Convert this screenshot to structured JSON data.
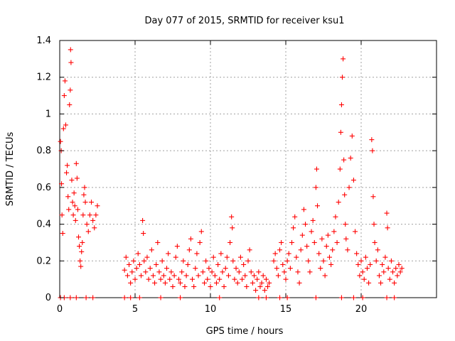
{
  "chart_data": {
    "type": "scatter",
    "title": "Day 077 of 2015, SRMTID for receiver ksu1",
    "xlabel": "GPS time / hours",
    "ylabel": "SRMTID / TECUs",
    "xlim": [
      0,
      25
    ],
    "ylim": [
      0,
      1.4
    ],
    "xticks": [
      0,
      5,
      10,
      15,
      20
    ],
    "xtick_labels": [
      "0",
      "5",
      "10",
      "15",
      "20"
    ],
    "yticks": [
      0,
      0.2,
      0.4,
      0.6,
      0.8,
      1.0,
      1.2,
      1.4
    ],
    "ytick_labels": [
      "0",
      "0.2",
      "0.4",
      "0.6",
      "0.8",
      "1",
      "1.2",
      "1.4"
    ],
    "grid": true,
    "marker": "+",
    "color": "#ff0000",
    "series": [
      {
        "name": "SRMTID",
        "points": [
          [
            0.05,
            0.85
          ],
          [
            0.1,
            0.8
          ],
          [
            0.12,
            0.62
          ],
          [
            0.15,
            0.45
          ],
          [
            0.2,
            0.35
          ],
          [
            0.25,
            0.92
          ],
          [
            0.3,
            1.1
          ],
          [
            0.35,
            1.18
          ],
          [
            0.4,
            0.94
          ],
          [
            0.45,
            0.68
          ],
          [
            0.5,
            0.72
          ],
          [
            0.55,
            0.55
          ],
          [
            0.6,
            0.48
          ],
          [
            0.65,
            1.05
          ],
          [
            0.7,
            1.13
          ],
          [
            0.72,
            1.35
          ],
          [
            0.75,
            1.28
          ],
          [
            0.8,
            0.64
          ],
          [
            0.85,
            0.52
          ],
          [
            0.9,
            0.45
          ],
          [
            0.95,
            0.57
          ],
          [
            1.0,
            0.5
          ],
          [
            1.05,
            0.42
          ],
          [
            1.1,
            0.73
          ],
          [
            1.15,
            0.65
          ],
          [
            1.2,
            0.48
          ],
          [
            1.25,
            0.33
          ],
          [
            1.3,
            0.28
          ],
          [
            1.35,
            0.2
          ],
          [
            1.4,
            0.17
          ],
          [
            1.45,
            0.25
          ],
          [
            1.5,
            0.3
          ],
          [
            1.55,
            0.45
          ],
          [
            1.6,
            0.56
          ],
          [
            1.65,
            0.6
          ],
          [
            1.7,
            0.52
          ],
          [
            1.8,
            0.4
          ],
          [
            1.9,
            0.36
          ],
          [
            2.0,
            0.45
          ],
          [
            2.1,
            0.52
          ],
          [
            2.2,
            0.42
          ],
          [
            2.3,
            0.38
          ],
          [
            2.4,
            0.45
          ],
          [
            2.5,
            0.5
          ],
          [
            4.3,
            0.15
          ],
          [
            4.4,
            0.22
          ],
          [
            4.5,
            0.12
          ],
          [
            4.6,
            0.18
          ],
          [
            4.7,
            0.08
          ],
          [
            4.8,
            0.14
          ],
          [
            4.9,
            0.2
          ],
          [
            5.0,
            0.1
          ],
          [
            5.1,
            0.16
          ],
          [
            5.2,
            0.24
          ],
          [
            5.3,
            0.18
          ],
          [
            5.4,
            0.12
          ],
          [
            5.5,
            0.42
          ],
          [
            5.55,
            0.35
          ],
          [
            5.6,
            0.2
          ],
          [
            5.7,
            0.14
          ],
          [
            5.8,
            0.22
          ],
          [
            5.9,
            0.1
          ],
          [
            6.0,
            0.16
          ],
          [
            6.1,
            0.26
          ],
          [
            6.2,
            0.12
          ],
          [
            6.3,
            0.08
          ],
          [
            6.4,
            0.18
          ],
          [
            6.5,
            0.3
          ],
          [
            6.6,
            0.14
          ],
          [
            6.7,
            0.1
          ],
          [
            6.8,
            0.2
          ],
          [
            6.9,
            0.12
          ],
          [
            7.0,
            0.08
          ],
          [
            7.1,
            0.16
          ],
          [
            7.2,
            0.24
          ],
          [
            7.3,
            0.1
          ],
          [
            7.4,
            0.14
          ],
          [
            7.5,
            0.06
          ],
          [
            7.6,
            0.12
          ],
          [
            7.7,
            0.22
          ],
          [
            7.8,
            0.28
          ],
          [
            7.9,
            0.1
          ],
          [
            8.0,
            0.08
          ],
          [
            8.1,
            0.14
          ],
          [
            8.2,
            0.2
          ],
          [
            8.3,
            0.06
          ],
          [
            8.4,
            0.12
          ],
          [
            8.5,
            0.18
          ],
          [
            8.6,
            0.26
          ],
          [
            8.7,
            0.32
          ],
          [
            8.8,
            0.1
          ],
          [
            8.9,
            0.06
          ],
          [
            9.0,
            0.16
          ],
          [
            9.1,
            0.24
          ],
          [
            9.2,
            0.12
          ],
          [
            9.3,
            0.3
          ],
          [
            9.4,
            0.36
          ],
          [
            9.5,
            0.14
          ],
          [
            9.6,
            0.08
          ],
          [
            9.7,
            0.2
          ],
          [
            9.8,
            0.1
          ],
          [
            9.9,
            0.16
          ],
          [
            10.0,
            0.06
          ],
          [
            10.1,
            0.14
          ],
          [
            10.2,
            0.22
          ],
          [
            10.3,
            0.12
          ],
          [
            10.4,
            0.08
          ],
          [
            10.5,
            0.18
          ],
          [
            10.6,
            0.1
          ],
          [
            10.7,
            0.24
          ],
          [
            10.8,
            0.14
          ],
          [
            10.9,
            0.06
          ],
          [
            11.0,
            0.16
          ],
          [
            11.1,
            0.22
          ],
          [
            11.2,
            0.12
          ],
          [
            11.3,
            0.3
          ],
          [
            11.4,
            0.44
          ],
          [
            11.45,
            0.38
          ],
          [
            11.5,
            0.2
          ],
          [
            11.6,
            0.1
          ],
          [
            11.7,
            0.16
          ],
          [
            11.8,
            0.08
          ],
          [
            11.9,
            0.14
          ],
          [
            12.0,
            0.22
          ],
          [
            12.1,
            0.1
          ],
          [
            12.2,
            0.18
          ],
          [
            12.3,
            0.12
          ],
          [
            12.4,
            0.06
          ],
          [
            12.5,
            0.2
          ],
          [
            12.6,
            0.26
          ],
          [
            12.7,
            0.14
          ],
          [
            12.8,
            0.08
          ],
          [
            12.9,
            0.12
          ],
          [
            13.0,
            0.04
          ],
          [
            13.1,
            0.1
          ],
          [
            13.2,
            0.14
          ],
          [
            13.3,
            0.06
          ],
          [
            13.4,
            0.08
          ],
          [
            13.5,
            0.12
          ],
          [
            13.6,
            0.04
          ],
          [
            13.7,
            0.1
          ],
          [
            13.8,
            0.06
          ],
          [
            13.9,
            0.08
          ],
          [
            14.2,
            0.2
          ],
          [
            14.3,
            0.24
          ],
          [
            14.4,
            0.16
          ],
          [
            14.5,
            0.12
          ],
          [
            14.6,
            0.26
          ],
          [
            14.7,
            0.3
          ],
          [
            14.8,
            0.18
          ],
          [
            14.9,
            0.14
          ],
          [
            15.0,
            0.1
          ],
          [
            15.1,
            0.2
          ],
          [
            15.2,
            0.24
          ],
          [
            15.3,
            0.16
          ],
          [
            15.4,
            0.3
          ],
          [
            15.5,
            0.38
          ],
          [
            15.6,
            0.44
          ],
          [
            15.7,
            0.22
          ],
          [
            15.8,
            0.14
          ],
          [
            15.9,
            0.08
          ],
          [
            16.0,
            0.26
          ],
          [
            16.1,
            0.34
          ],
          [
            16.2,
            0.48
          ],
          [
            16.3,
            0.4
          ],
          [
            16.4,
            0.28
          ],
          [
            16.5,
            0.2
          ],
          [
            16.6,
            0.14
          ],
          [
            16.7,
            0.36
          ],
          [
            16.8,
            0.42
          ],
          [
            16.9,
            0.3
          ],
          [
            17.0,
            0.6
          ],
          [
            17.05,
            0.7
          ],
          [
            17.1,
            0.5
          ],
          [
            17.2,
            0.24
          ],
          [
            17.3,
            0.16
          ],
          [
            17.4,
            0.32
          ],
          [
            17.5,
            0.2
          ],
          [
            17.6,
            0.12
          ],
          [
            17.7,
            0.28
          ],
          [
            17.8,
            0.34
          ],
          [
            17.9,
            0.22
          ],
          [
            18.0,
            0.18
          ],
          [
            18.1,
            0.26
          ],
          [
            18.2,
            0.36
          ],
          [
            18.3,
            0.44
          ],
          [
            18.4,
            0.3
          ],
          [
            18.5,
            0.52
          ],
          [
            18.6,
            0.7
          ],
          [
            18.65,
            0.9
          ],
          [
            18.7,
            1.05
          ],
          [
            18.75,
            1.2
          ],
          [
            18.8,
            1.3
          ],
          [
            18.85,
            0.75
          ],
          [
            18.9,
            0.56
          ],
          [
            18.95,
            0.4
          ],
          [
            19.0,
            0.32
          ],
          [
            19.1,
            0.26
          ],
          [
            19.2,
            0.6
          ],
          [
            19.3,
            0.76
          ],
          [
            19.4,
            0.88
          ],
          [
            19.5,
            0.64
          ],
          [
            19.6,
            0.36
          ],
          [
            19.7,
            0.24
          ],
          [
            19.8,
            0.18
          ],
          [
            19.9,
            0.12
          ],
          [
            20.0,
            0.2
          ],
          [
            20.1,
            0.14
          ],
          [
            20.2,
            0.1
          ],
          [
            20.3,
            0.22
          ],
          [
            20.4,
            0.16
          ],
          [
            20.5,
            0.08
          ],
          [
            20.6,
            0.18
          ],
          [
            20.7,
            0.86
          ],
          [
            20.75,
            0.8
          ],
          [
            20.8,
            0.55
          ],
          [
            20.85,
            0.4
          ],
          [
            20.9,
            0.3
          ],
          [
            21.0,
            0.2
          ],
          [
            21.1,
            0.26
          ],
          [
            21.2,
            0.12
          ],
          [
            21.3,
            0.08
          ],
          [
            21.4,
            0.18
          ],
          [
            21.5,
            0.14
          ],
          [
            21.6,
            0.22
          ],
          [
            21.7,
            0.46
          ],
          [
            21.75,
            0.38
          ],
          [
            21.8,
            0.16
          ],
          [
            21.9,
            0.1
          ],
          [
            22.0,
            0.2
          ],
          [
            22.1,
            0.14
          ],
          [
            22.2,
            0.08
          ],
          [
            22.3,
            0.16
          ],
          [
            22.4,
            0.12
          ],
          [
            22.5,
            0.18
          ],
          [
            22.6,
            0.14
          ],
          [
            22.7,
            0.16
          ],
          [
            0.05,
            0.0
          ],
          [
            0.3,
            0.0
          ],
          [
            0.7,
            0.0
          ],
          [
            1.1,
            0.0
          ],
          [
            1.75,
            0.0
          ],
          [
            2.2,
            0.0
          ],
          [
            4.3,
            0.0
          ],
          [
            4.7,
            0.0
          ],
          [
            5.3,
            0.0
          ],
          [
            6.7,
            0.0
          ],
          [
            8.0,
            0.0
          ],
          [
            10.6,
            0.0
          ],
          [
            13.2,
            0.0
          ],
          [
            13.7,
            0.0
          ],
          [
            14.6,
            0.0
          ],
          [
            15.1,
            0.0
          ],
          [
            17.0,
            0.0
          ],
          [
            18.7,
            0.0
          ],
          [
            19.5,
            0.0
          ],
          [
            20.1,
            0.0
          ],
          [
            21.7,
            0.0
          ],
          [
            22.2,
            0.0
          ]
        ]
      }
    ]
  }
}
